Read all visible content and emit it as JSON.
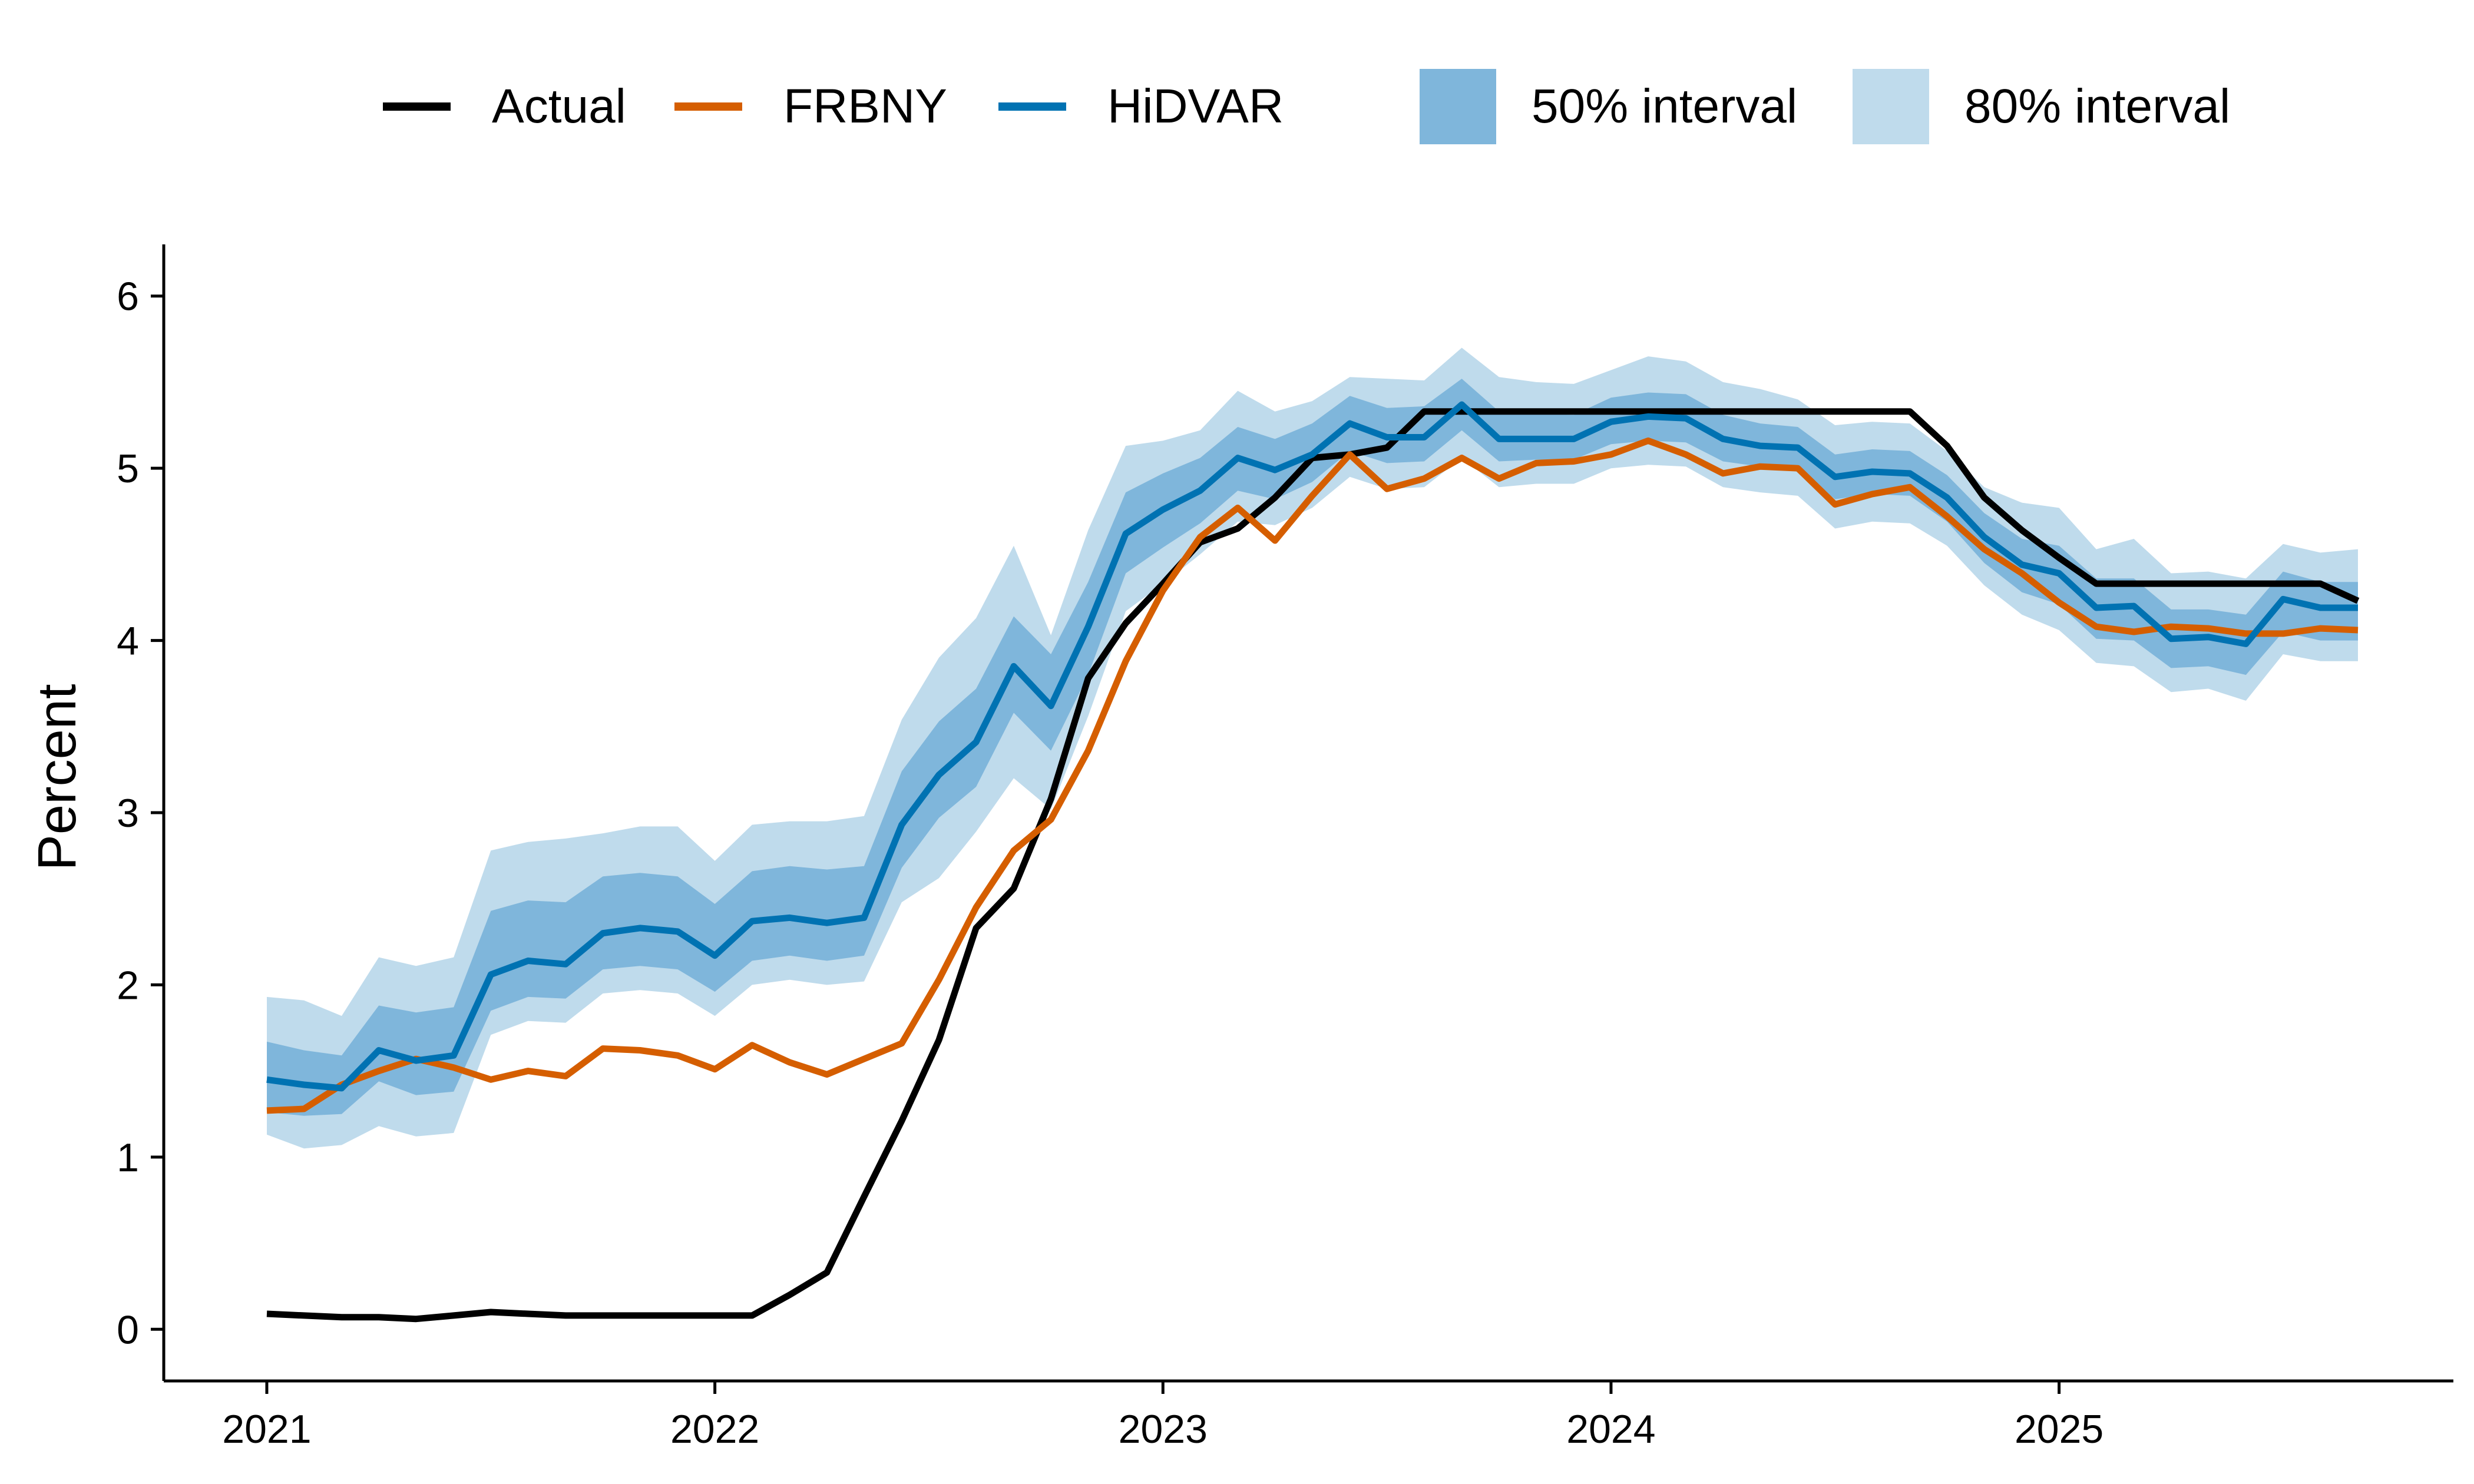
{
  "colors": {
    "actual": "#000000",
    "frbny": "#D55E00",
    "hidvar": "#0072B2",
    "interval50": "#7FB6DB",
    "interval80": "#BFDBEC"
  },
  "legend": {
    "actual": "Actual",
    "frbny": "FRBNY",
    "hidvar": "HiDVAR",
    "interval50": "50% interval",
    "interval80": "80% interval"
  },
  "chart_data": {
    "type": "line",
    "xlabel": "",
    "ylabel": "Percent",
    "xlim": [
      2020.77,
      2025.88
    ],
    "ylim": [
      -0.3,
      6.3
    ],
    "x_ticks": [
      2021,
      2022,
      2023,
      2024,
      2025
    ],
    "x_tick_labels": [
      "2021",
      "2022",
      "2023",
      "2024",
      "2025"
    ],
    "y_ticks": [
      0,
      1,
      2,
      3,
      4,
      5,
      6
    ],
    "y_tick_labels": [
      "0",
      "1",
      "2",
      "3",
      "4",
      "5",
      "6"
    ],
    "grid": false,
    "legend_position": "top",
    "x": [
      2021.0,
      2021.083,
      2021.167,
      2021.25,
      2021.333,
      2021.417,
      2021.5,
      2021.583,
      2021.667,
      2021.75,
      2021.833,
      2021.917,
      2022.0,
      2022.083,
      2022.167,
      2022.25,
      2022.333,
      2022.417,
      2022.5,
      2022.583,
      2022.667,
      2022.75,
      2022.833,
      2022.917,
      2023.0,
      2023.083,
      2023.167,
      2023.25,
      2023.333,
      2023.417,
      2023.5,
      2023.583,
      2023.667,
      2023.75,
      2023.833,
      2023.917,
      2024.0,
      2024.083,
      2024.167,
      2024.25,
      2024.333,
      2024.417,
      2024.5,
      2024.583,
      2024.667,
      2024.75,
      2024.833,
      2024.917,
      2025.0,
      2025.083,
      2025.167,
      2025.25,
      2025.333,
      2025.417,
      2025.5,
      2025.583,
      2025.667
    ],
    "series": [
      {
        "name": "Actual",
        "values": [
          0.09,
          0.08,
          0.07,
          0.07,
          0.06,
          0.08,
          0.1,
          0.09,
          0.08,
          0.08,
          0.08,
          0.08,
          0.08,
          0.08,
          0.2,
          0.33,
          0.77,
          1.21,
          1.68,
          2.33,
          2.56,
          3.08,
          3.78,
          4.1,
          4.33,
          4.57,
          4.65,
          4.83,
          5.06,
          5.08,
          5.12,
          5.33,
          5.33,
          5.33,
          5.33,
          5.33,
          5.33,
          5.33,
          5.33,
          5.33,
          5.33,
          5.33,
          5.33,
          5.33,
          5.33,
          5.13,
          4.83,
          4.64,
          4.48,
          4.33,
          4.33,
          4.33,
          4.33,
          4.33,
          4.33,
          4.33,
          4.23
        ]
      },
      {
        "name": "FRBNY",
        "values": [
          1.27,
          1.28,
          1.42,
          1.5,
          1.57,
          1.52,
          1.45,
          1.5,
          1.47,
          1.63,
          1.62,
          1.59,
          1.51,
          1.65,
          1.55,
          1.48,
          1.57,
          1.66,
          2.03,
          2.45,
          2.78,
          2.96,
          3.36,
          3.88,
          4.29,
          4.6,
          4.77,
          4.58,
          4.84,
          5.08,
          4.88,
          4.94,
          5.06,
          4.94,
          5.03,
          5.04,
          5.08,
          5.16,
          5.08,
          4.97,
          5.01,
          5.0,
          4.79,
          4.85,
          4.89,
          4.72,
          4.53,
          4.39,
          4.22,
          4.08,
          4.05,
          4.08,
          4.07,
          4.04,
          4.04,
          4.07,
          4.06
        ]
      },
      {
        "name": "HiDVAR",
        "values": [
          1.45,
          1.42,
          1.4,
          1.62,
          1.56,
          1.59,
          2.06,
          2.14,
          2.12,
          2.3,
          2.33,
          2.31,
          2.17,
          2.37,
          2.39,
          2.36,
          2.39,
          2.93,
          3.22,
          3.41,
          3.85,
          3.62,
          4.08,
          4.62,
          4.76,
          4.87,
          5.06,
          4.99,
          5.08,
          5.26,
          5.18,
          5.18,
          5.37,
          5.17,
          5.17,
          5.17,
          5.27,
          5.3,
          5.29,
          5.17,
          5.13,
          5.12,
          4.95,
          4.98,
          4.97,
          4.83,
          4.6,
          4.44,
          4.39,
          4.19,
          4.2,
          4.01,
          4.02,
          3.98,
          4.24,
          4.19,
          4.19
        ]
      }
    ],
    "intervals": [
      {
        "name": "50% interval",
        "lower": [
          1.26,
          1.24,
          1.25,
          1.44,
          1.36,
          1.38,
          1.85,
          1.93,
          1.92,
          2.09,
          2.11,
          2.09,
          1.96,
          2.14,
          2.17,
          2.14,
          2.17,
          2.68,
          2.97,
          3.15,
          3.58,
          3.36,
          3.8,
          4.39,
          4.54,
          4.68,
          4.87,
          4.82,
          4.92,
          5.1,
          5.03,
          5.04,
          5.22,
          5.04,
          5.05,
          5.05,
          5.14,
          5.16,
          5.15,
          5.04,
          5.01,
          4.99,
          4.82,
          4.85,
          4.84,
          4.69,
          4.45,
          4.28,
          4.21,
          4.01,
          4.0,
          3.84,
          3.85,
          3.8,
          4.05,
          4.0,
          4.0
        ],
        "upper": [
          1.67,
          1.62,
          1.59,
          1.88,
          1.84,
          1.87,
          2.43,
          2.49,
          2.48,
          2.63,
          2.65,
          2.63,
          2.47,
          2.66,
          2.69,
          2.67,
          2.69,
          3.24,
          3.53,
          3.72,
          4.14,
          3.92,
          4.34,
          4.86,
          4.97,
          5.06,
          5.24,
          5.17,
          5.26,
          5.42,
          5.35,
          5.36,
          5.52,
          5.33,
          5.32,
          5.31,
          5.41,
          5.44,
          5.43,
          5.31,
          5.26,
          5.24,
          5.08,
          5.11,
          5.1,
          4.96,
          4.74,
          4.59,
          4.55,
          4.36,
          4.36,
          4.18,
          4.18,
          4.15,
          4.4,
          4.34,
          4.34
        ]
      },
      {
        "name": "80% interval",
        "lower": [
          1.13,
          1.05,
          1.07,
          1.18,
          1.12,
          1.14,
          1.71,
          1.79,
          1.78,
          1.95,
          1.97,
          1.95,
          1.82,
          2.0,
          2.03,
          2.0,
          2.02,
          2.48,
          2.62,
          2.89,
          3.2,
          3.02,
          3.56,
          4.17,
          4.33,
          4.5,
          4.69,
          4.67,
          4.77,
          4.95,
          4.88,
          4.89,
          5.06,
          4.89,
          4.91,
          4.91,
          5.0,
          5.02,
          5.01,
          4.89,
          4.86,
          4.84,
          4.65,
          4.69,
          4.68,
          4.55,
          4.32,
          4.15,
          4.06,
          3.87,
          3.85,
          3.7,
          3.72,
          3.65,
          3.92,
          3.88,
          3.88
        ],
        "upper": [
          1.93,
          1.91,
          1.82,
          2.16,
          2.11,
          2.16,
          2.78,
          2.83,
          2.85,
          2.88,
          2.92,
          2.92,
          2.72,
          2.93,
          2.95,
          2.95,
          2.98,
          3.54,
          3.9,
          4.13,
          4.55,
          4.03,
          4.64,
          5.13,
          5.16,
          5.22,
          5.45,
          5.33,
          5.39,
          5.53,
          5.52,
          5.51,
          5.7,
          5.53,
          5.5,
          5.49,
          5.57,
          5.65,
          5.62,
          5.5,
          5.46,
          5.4,
          5.25,
          5.27,
          5.26,
          5.1,
          4.89,
          4.8,
          4.77,
          4.53,
          4.59,
          4.39,
          4.4,
          4.36,
          4.56,
          4.51,
          4.53
        ]
      }
    ]
  }
}
